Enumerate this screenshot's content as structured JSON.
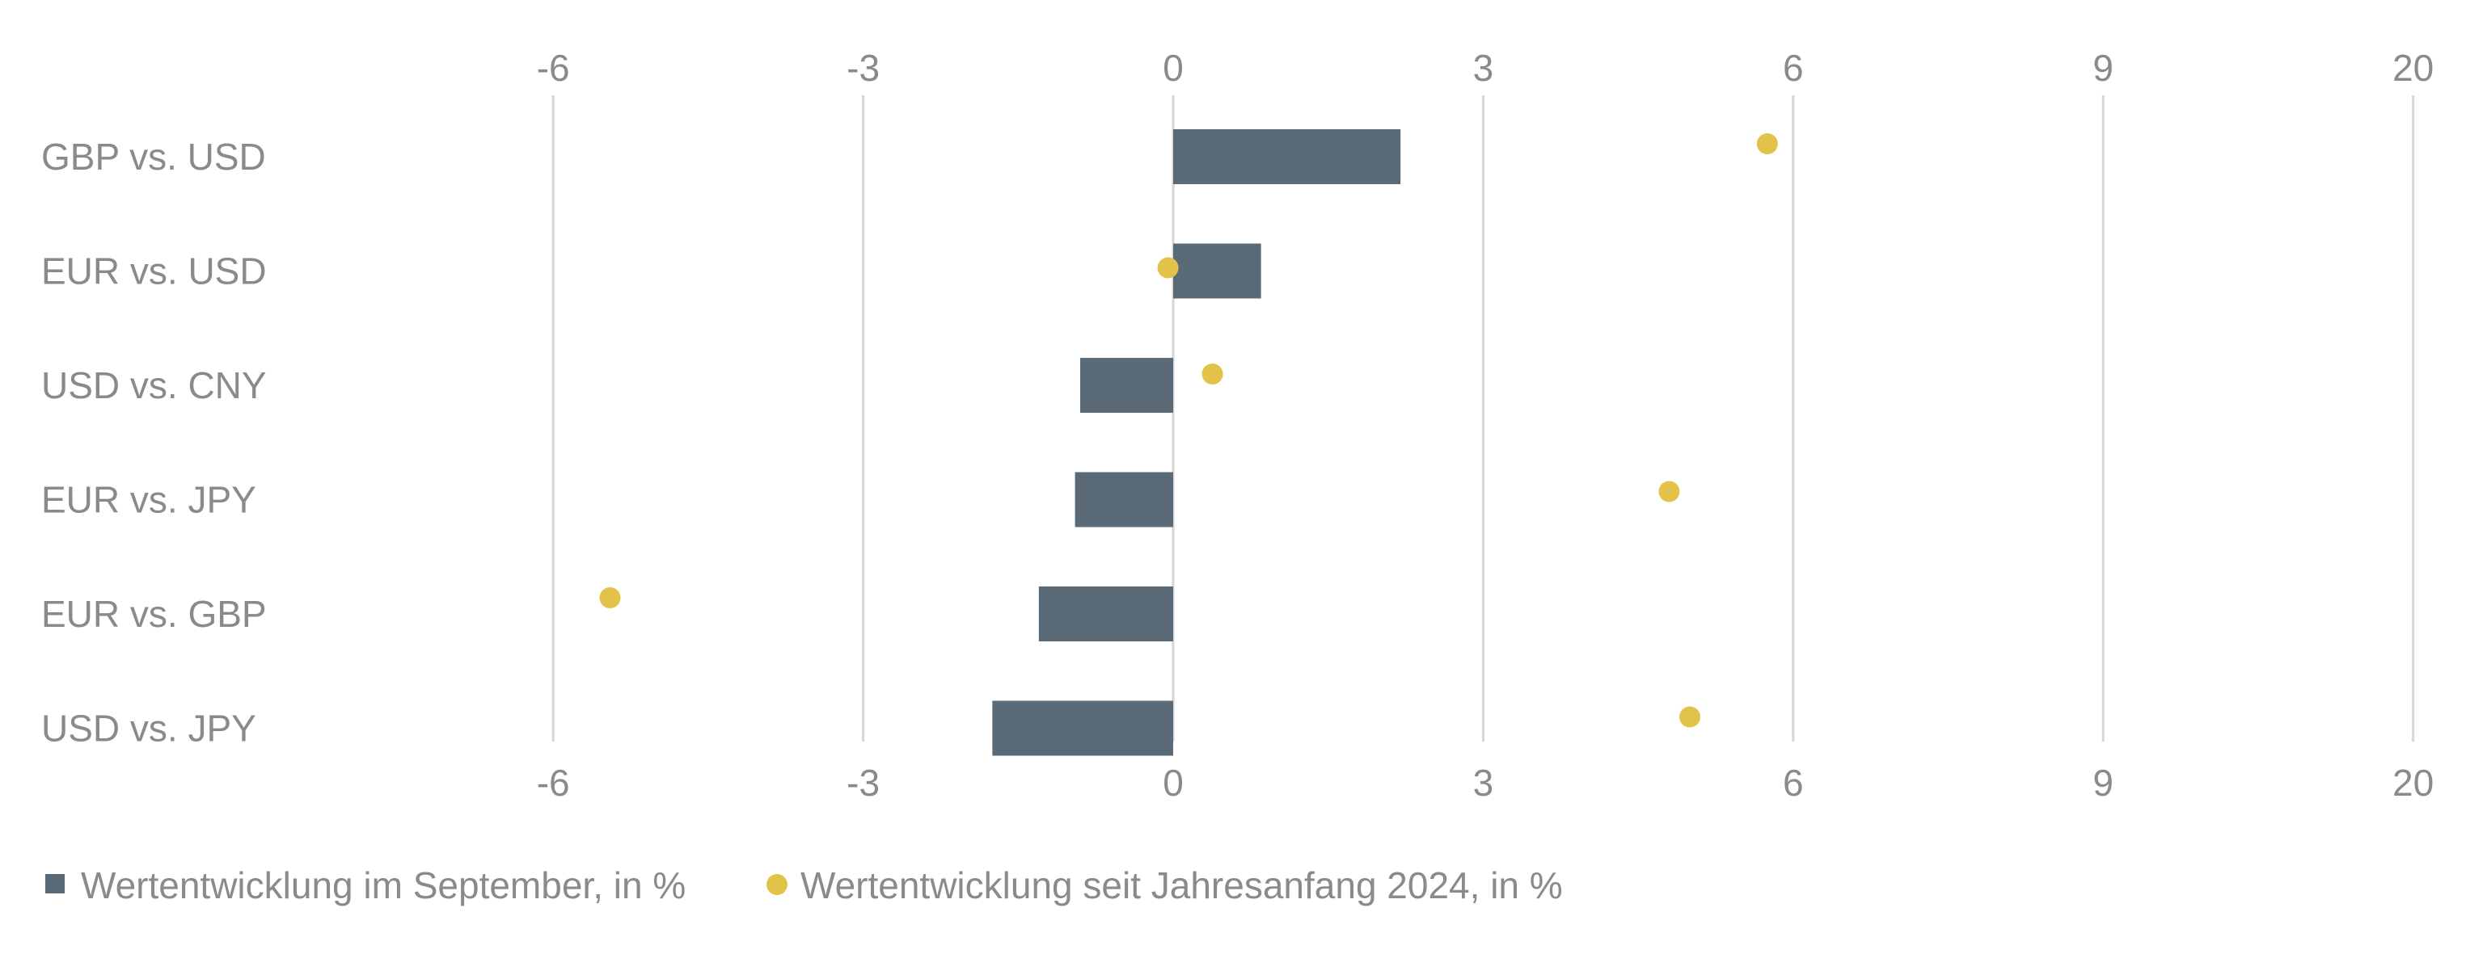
{
  "chart_data": {
    "type": "bar",
    "orientation": "horizontal",
    "categories": [
      "GBP vs. USD",
      "EUR vs. USD",
      "USD vs. CNY",
      "EUR vs. JPY",
      "EUR vs. GBP",
      "USD vs. JPY"
    ],
    "series": [
      {
        "name": "Wertentwicklung im September, in %",
        "kind": "bar",
        "color": "#5a6b77",
        "values": [
          2.2,
          0.85,
          -0.9,
          -0.95,
          -1.3,
          -1.75
        ]
      },
      {
        "name": "Wertentwicklung seit Jahresanfang 2024, in %",
        "kind": "dot",
        "color": "#e3c24a",
        "values": [
          5.75,
          -0.05,
          0.38,
          4.8,
          -5.45,
          5.0
        ]
      }
    ],
    "x_ticks": [
      "-6",
      "-3",
      "0",
      "3",
      "6",
      "9",
      "20"
    ],
    "grid": true,
    "legend_position": "bottom-left"
  }
}
